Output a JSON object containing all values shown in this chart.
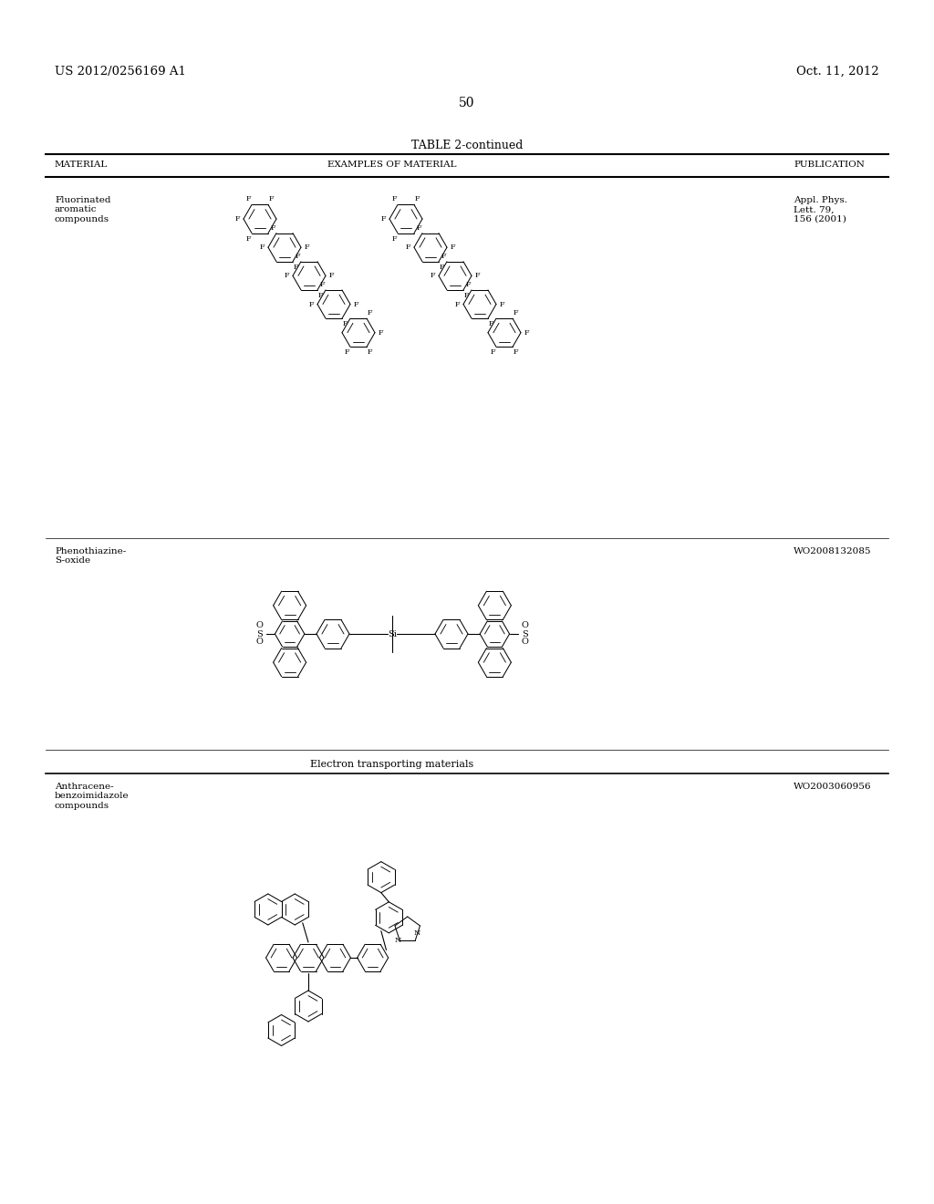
{
  "header_left": "US 2012/0256169 A1",
  "header_right": "Oct. 11, 2012",
  "page_number": "50",
  "table_title": "TABLE 2-continued",
  "col1": "MATERIAL",
  "col2": "EXAMPLES OF MATERIAL",
  "col3": "PUBLICATION",
  "row1_mat": "Fluorinated\naromatic\ncompounds",
  "row1_pub": "Appl. Phys.\nLett. 79,\n156 (2001)",
  "row2_mat": "Phenothiazine-\nS-oxide",
  "row2_pub": "WO2008132085",
  "section": "Electron transporting materials",
  "row3_mat": "Anthracene-\nbenzoimidazole\ncompounds",
  "row3_pub": "WO2003060956",
  "bg": "#ffffff",
  "fg": "#000000"
}
